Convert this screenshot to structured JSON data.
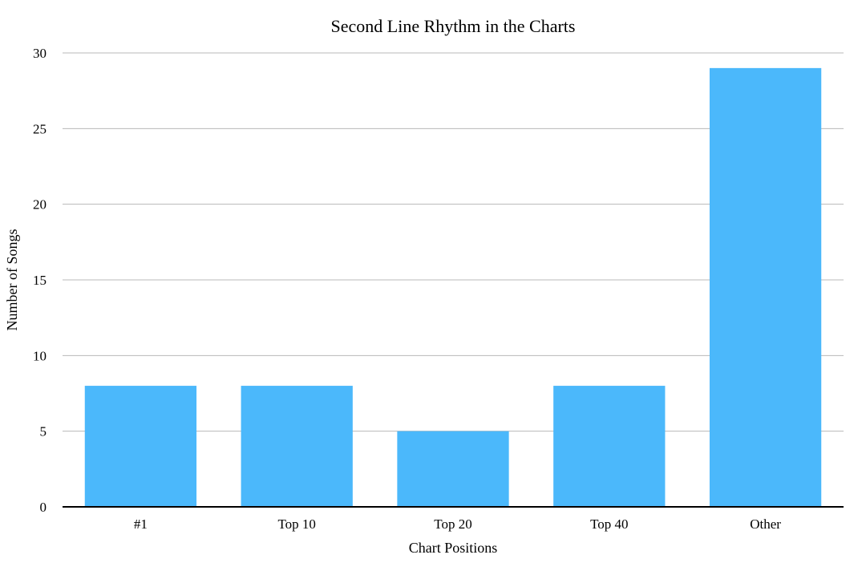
{
  "chart_data": {
    "type": "bar",
    "title": "Second Line Rhythm in the Charts",
    "xlabel": "Chart Positions",
    "ylabel": "Number of Songs",
    "categories": [
      "#1",
      "Top 10",
      "Top 20",
      "Top 40",
      "Other"
    ],
    "values": [
      8,
      8,
      5,
      8,
      29
    ],
    "ylim": [
      0,
      30
    ],
    "yticks": [
      0,
      5,
      10,
      15,
      20,
      25,
      30
    ],
    "grid": true,
    "legend": "none",
    "bar_color": "#4bb8fb"
  }
}
